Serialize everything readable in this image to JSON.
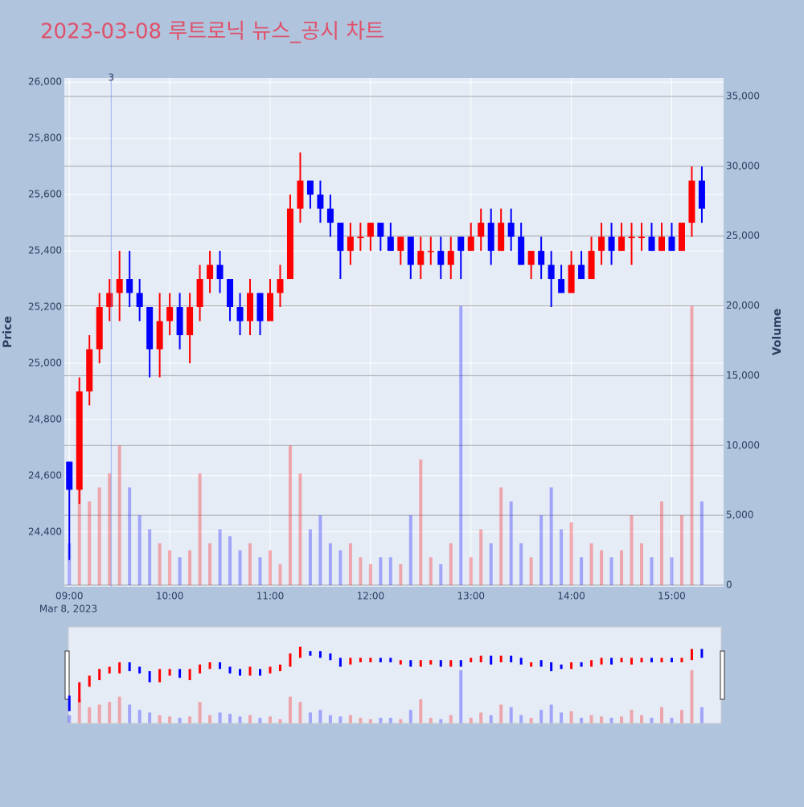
{
  "chart_data": {
    "type": "candlestick",
    "title": "2023-03-08 루트로닉 뉴스_공시 차트",
    "y_label": "Price",
    "y2_label": "Volume",
    "x_date_label": "Mar 8, 2023",
    "x": [
      "2023-03-08 09:00",
      "2023-03-08 09:06",
      "2023-03-08 09:12",
      "2023-03-08 09:18",
      "2023-03-08 09:24",
      "2023-03-08 09:30",
      "2023-03-08 09:36",
      "2023-03-08 09:42",
      "2023-03-08 09:48",
      "2023-03-08 09:54",
      "2023-03-08 10:00",
      "2023-03-08 10:06",
      "2023-03-08 10:12",
      "2023-03-08 10:18",
      "2023-03-08 10:24",
      "2023-03-08 10:30",
      "2023-03-08 10:36",
      "2023-03-08 10:42",
      "2023-03-08 10:48",
      "2023-03-08 10:54",
      "2023-03-08 11:00",
      "2023-03-08 11:06",
      "2023-03-08 11:12",
      "2023-03-08 11:18",
      "2023-03-08 11:24",
      "2023-03-08 11:30",
      "2023-03-08 11:36",
      "2023-03-08 11:42",
      "2023-03-08 11:48",
      "2023-03-08 11:54",
      "2023-03-08 12:00",
      "2023-03-08 12:06",
      "2023-03-08 12:12",
      "2023-03-08 12:18",
      "2023-03-08 12:24",
      "2023-03-08 12:30",
      "2023-03-08 12:36",
      "2023-03-08 12:42",
      "2023-03-08 12:48",
      "2023-03-08 12:54",
      "2023-03-08 13:00",
      "2023-03-08 13:06",
      "2023-03-08 13:12",
      "2023-03-08 13:18",
      "2023-03-08 13:24",
      "2023-03-08 13:30",
      "2023-03-08 13:36",
      "2023-03-08 13:42",
      "2023-03-08 13:48",
      "2023-03-08 13:54",
      "2023-03-08 14:00",
      "2023-03-08 14:06",
      "2023-03-08 14:12",
      "2023-03-08 14:18",
      "2023-03-08 14:24",
      "2023-03-08 14:30",
      "2023-03-08 14:36",
      "2023-03-08 14:42",
      "2023-03-08 14:48",
      "2023-03-08 14:54",
      "2023-03-08 15:00",
      "2023-03-08 15:06",
      "2023-03-08 15:12",
      "2023-03-08 15:18"
    ],
    "open": [
      24650,
      24550,
      24900,
      25050,
      25200,
      25250,
      25300,
      25250,
      25200,
      25050,
      25150,
      25200,
      25100,
      25200,
      25300,
      25350,
      25300,
      25200,
      25150,
      25250,
      25150,
      25250,
      25300,
      25550,
      25650,
      25600,
      25550,
      25500,
      25400,
      25450,
      25450,
      25500,
      25450,
      25400,
      25450,
      25350,
      25400,
      25400,
      25350,
      25450,
      25400,
      25450,
      25500,
      25400,
      25500,
      25450,
      25350,
      25400,
      25350,
      25300,
      25250,
      25350,
      25300,
      25400,
      25450,
      25400,
      25450,
      25450,
      25450,
      25400,
      25450,
      25400,
      25500,
      25650
    ],
    "high": [
      24650,
      24950,
      25100,
      25250,
      25300,
      25400,
      25400,
      25300,
      25200,
      25250,
      25250,
      25250,
      25250,
      25350,
      25400,
      25400,
      25300,
      25250,
      25300,
      25250,
      25300,
      25350,
      25600,
      25750,
      25650,
      25650,
      25600,
      25500,
      25500,
      25500,
      25500,
      25500,
      25500,
      25450,
      25450,
      25450,
      25450,
      25450,
      25450,
      25450,
      25500,
      25550,
      25550,
      25550,
      25550,
      25500,
      25400,
      25450,
      25400,
      25350,
      25400,
      25400,
      25450,
      25500,
      25500,
      25500,
      25500,
      25500,
      25500,
      25500,
      25500,
      25500,
      25700,
      25700
    ],
    "low": [
      24300,
      24500,
      24850,
      25000,
      25150,
      25150,
      25200,
      25150,
      24950,
      24950,
      25100,
      25050,
      25000,
      25150,
      25250,
      25250,
      25150,
      25100,
      25100,
      25100,
      25150,
      25200,
      25300,
      25500,
      25550,
      25500,
      25450,
      25300,
      25350,
      25400,
      25400,
      25400,
      25400,
      25350,
      25300,
      25300,
      25350,
      25300,
      25300,
      25300,
      25400,
      25400,
      25350,
      25400,
      25400,
      25350,
      25300,
      25300,
      25200,
      25250,
      25250,
      25300,
      25300,
      25350,
      25350,
      25400,
      25350,
      25400,
      25400,
      25400,
      25400,
      25400,
      25450,
      25500
    ],
    "close": [
      24550,
      24900,
      25050,
      25200,
      25250,
      25300,
      25250,
      25200,
      25050,
      25150,
      25200,
      25100,
      25200,
      25300,
      25350,
      25300,
      25200,
      25150,
      25250,
      25150,
      25250,
      25300,
      25550,
      25650,
      25600,
      25550,
      25500,
      25400,
      25450,
      25450,
      25500,
      25450,
      25400,
      25450,
      25350,
      25400,
      25400,
      25350,
      25400,
      25400,
      25450,
      25500,
      25400,
      25500,
      25450,
      25350,
      25400,
      25350,
      25300,
      25250,
      25350,
      25300,
      25400,
      25450,
      25400,
      25450,
      25450,
      25450,
      25400,
      25450,
      25400,
      25500,
      25650,
      25550
    ],
    "volume": [
      3000,
      9000,
      6000,
      7000,
      8000,
      10000,
      7000,
      5000,
      4000,
      3000,
      2500,
      2000,
      2500,
      8000,
      3000,
      4000,
      3500,
      2500,
      3000,
      2000,
      2500,
      1500,
      10000,
      8000,
      4000,
      5000,
      3000,
      2500,
      3000,
      2000,
      1500,
      2000,
      2000,
      1500,
      5000,
      9000,
      2000,
      1500,
      3000,
      20000,
      2000,
      4000,
      3000,
      7000,
      6000,
      3000,
      2000,
      5000,
      7000,
      4000,
      4500,
      2000,
      3000,
      2500,
      2000,
      2500,
      5000,
      3000,
      2000,
      6000,
      2000,
      5000,
      20000,
      6000
    ],
    "colors": {
      "up": "#ff0000",
      "down": "#0000ff"
    },
    "xlim": [
      "2023-03-08 08:57",
      "2023-03-08 15:31"
    ],
    "xticks": [
      {
        "value": "2023-03-08 09:00",
        "label": "09:00"
      },
      {
        "value": "2023-03-08 10:00",
        "label": "10:00"
      },
      {
        "value": "2023-03-08 11:00",
        "label": "11:00"
      },
      {
        "value": "2023-03-08 12:00",
        "label": "12:00"
      },
      {
        "value": "2023-03-08 13:00",
        "label": "13:00"
      },
      {
        "value": "2023-03-08 14:00",
        "label": "14:00"
      },
      {
        "value": "2023-03-08 15:00",
        "label": "15:00"
      }
    ],
    "ylim": [
      24205,
      26015
    ],
    "yticks": [
      {
        "value": 24400,
        "label": "24,400"
      },
      {
        "value": 24600,
        "label": "24,600"
      },
      {
        "value": 24800,
        "label": "24,800"
      },
      {
        "value": 25000,
        "label": "25,000"
      },
      {
        "value": 25200,
        "label": "25,200"
      },
      {
        "value": 25400,
        "label": "25,400"
      },
      {
        "value": 25600,
        "label": "25,600"
      },
      {
        "value": 25800,
        "label": "25,800"
      },
      {
        "value": 26000,
        "label": "26,000"
      }
    ],
    "y2lim": [
      -115,
      36325
    ],
    "y2ticks": [
      0,
      {
        "value": 5000,
        "label": "5,000"
      },
      {
        "value": 10000,
        "label": "10,000"
      },
      {
        "value": 15000,
        "label": "15,000"
      },
      {
        "value": 20000,
        "label": "20,000"
      },
      {
        "value": 25000,
        "label": "25,000"
      },
      {
        "value": 30000,
        "label": "30,000"
      },
      {
        "value": 35000,
        "label": "35,000"
      }
    ],
    "annotations": [
      {
        "x": "2023-03-08 09:25",
        "text": "3"
      }
    ],
    "grid": true,
    "range_slider": true
  }
}
